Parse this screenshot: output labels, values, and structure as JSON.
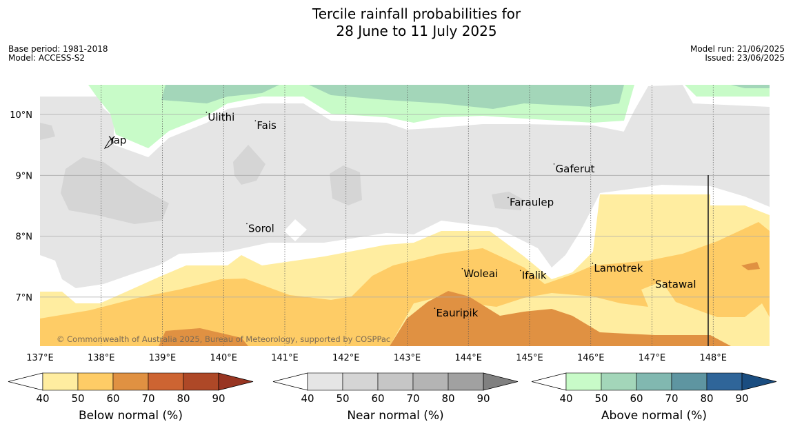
{
  "title": {
    "line1": "Tercile rainfall probabilities for",
    "line2": "28 June to 11 July 2025"
  },
  "meta": {
    "base_period": "Base period: 1981-2018",
    "model": "Model: ACCESS-S2",
    "model_run": "Model run: 21/06/2025",
    "issued": "Issued: 23/06/2025"
  },
  "copyright": "© Commonwealth of Australia 2025, Bureau of Meteorology, supported by COSPPac",
  "map": {
    "lon_range": [
      137,
      149
    ],
    "lat_range": [
      6.2,
      10.5
    ],
    "lon_ticks": [
      {
        "value": 137,
        "label": "137°E"
      },
      {
        "value": 138,
        "label": "138°E"
      },
      {
        "value": 139,
        "label": "139°E"
      },
      {
        "value": 140,
        "label": "140°E"
      },
      {
        "value": 141,
        "label": "141°E"
      },
      {
        "value": 142,
        "label": "142°E"
      },
      {
        "value": 143,
        "label": "143°E"
      },
      {
        "value": 144,
        "label": "144°E"
      },
      {
        "value": 145,
        "label": "145°E"
      },
      {
        "value": 146,
        "label": "146°E"
      },
      {
        "value": 147,
        "label": "147°E"
      },
      {
        "value": 148,
        "label": "148°E"
      }
    ],
    "lat_ticks": [
      {
        "value": 10,
        "label": "10°N"
      },
      {
        "value": 9,
        "label": "9°N"
      },
      {
        "value": 8,
        "label": "8°N"
      },
      {
        "value": 7,
        "label": "7°N"
      }
    ],
    "places": [
      {
        "name": "Yap",
        "lon": 138.1,
        "lat": 9.52
      },
      {
        "name": "Ulithi",
        "lon": 139.72,
        "lat": 9.9
      },
      {
        "name": "Fais",
        "lon": 140.52,
        "lat": 9.76
      },
      {
        "name": "Gaferut",
        "lon": 145.4,
        "lat": 9.05
      },
      {
        "name": "Faraulep",
        "lon": 144.65,
        "lat": 8.5
      },
      {
        "name": "Sorol",
        "lon": 140.38,
        "lat": 8.07
      },
      {
        "name": "Lamotrek",
        "lon": 146.03,
        "lat": 7.42
      },
      {
        "name": "Woleai",
        "lon": 143.9,
        "lat": 7.33
      },
      {
        "name": "Ifalik",
        "lon": 144.85,
        "lat": 7.3
      },
      {
        "name": "Satawal",
        "lon": 147.03,
        "lat": 7.15
      },
      {
        "name": "Eauripik",
        "lon": 143.45,
        "lat": 6.68
      }
    ]
  },
  "legends": [
    {
      "title": "Below normal (%)",
      "labels": [
        "40",
        "50",
        "60",
        "70",
        "80",
        "90"
      ],
      "colors": [
        "#ffeda0",
        "#fecc66",
        "#e09142",
        "#cd6432",
        "#ae4827"
      ],
      "over_color": "#983522"
    },
    {
      "title": "Near normal (%)",
      "labels": [
        "40",
        "50",
        "60",
        "70",
        "80",
        "90"
      ],
      "colors": [
        "#e5e5e5",
        "#d5d5d5",
        "#c6c6c6",
        "#b4b4b4",
        "#a1a1a1"
      ],
      "over_color": "#808080"
    },
    {
      "title": "Above normal (%)",
      "labels": [
        "40",
        "50",
        "60",
        "70",
        "80",
        "90"
      ],
      "colors": [
        "#c8fbc8",
        "#a3d6b9",
        "#81b8b0",
        "#5e95a1",
        "#2f6599"
      ],
      "over_color": "#1a4d80"
    }
  ]
}
